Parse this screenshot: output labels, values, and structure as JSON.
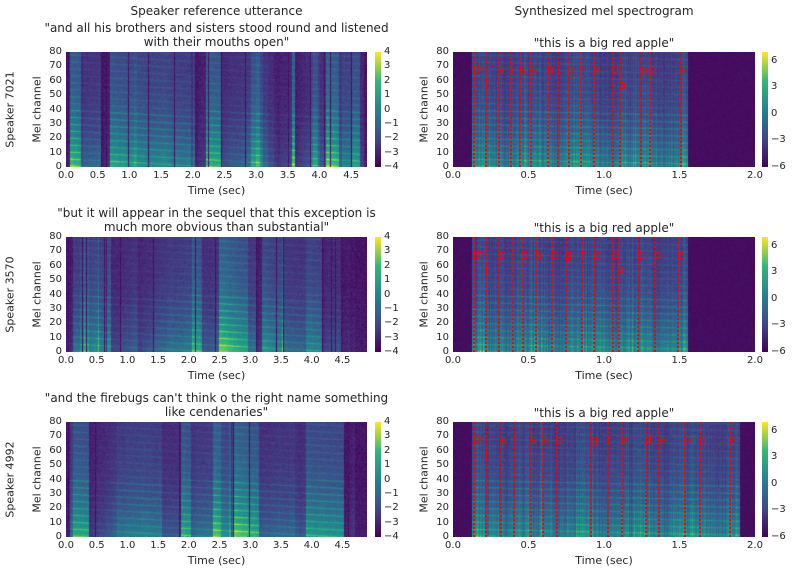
{
  "headers": {
    "left": "Speaker reference utterance",
    "right": "Synthesized mel spectrogram"
  },
  "chart_data": [
    {
      "type": "heatmap",
      "row": 0,
      "column": "left",
      "ylabel_outer": "Speaker 7021",
      "title": "\"and all his brothers and sisters stood round and listened\nwith their mouths open\"",
      "xlabel": "Time (sec)",
      "ylabel": "Mel channel",
      "xlim": [
        0,
        4.75
      ],
      "ylim": [
        0,
        80
      ],
      "xticks": [
        "0.0",
        "0.5",
        "1.0",
        "1.5",
        "2.0",
        "2.5",
        "3.0",
        "3.5",
        "4.0",
        "4.5"
      ],
      "yticks": [
        "0",
        "10",
        "20",
        "30",
        "40",
        "50",
        "60",
        "70",
        "80"
      ],
      "colorbar": {
        "range": [
          -4,
          4
        ],
        "ticks": [
          "4",
          "3",
          "2",
          "1",
          "0",
          "−1",
          "−2",
          "−3",
          "−4"
        ],
        "colormap": "viridis"
      }
    },
    {
      "type": "heatmap",
      "row": 0,
      "column": "right",
      "title": "\"this is a big red apple\"",
      "xlabel": "Time (sec)",
      "ylabel": "Mel channel",
      "xlim": [
        0,
        2.0
      ],
      "ylim": [
        0,
        80
      ],
      "xticks": [
        "0.0",
        "0.5",
        "1.0",
        "1.5",
        "2.0"
      ],
      "yticks": [
        "0",
        "10",
        "20",
        "30",
        "40",
        "50",
        "60",
        "70",
        "80"
      ],
      "colorbar": {
        "range": [
          -6,
          7
        ],
        "ticks": [
          "6",
          "3",
          "0",
          "−3",
          "−6"
        ],
        "colormap": "viridis"
      },
      "phonemes": [
        {
          "t": 0.15,
          "p": "th"
        },
        {
          "t": 0.23,
          "p": "i"
        },
        {
          "t": 0.32,
          "p": "s"
        },
        {
          "t": 0.4,
          "p": "i"
        },
        {
          "t": 0.46,
          "p": "s"
        },
        {
          "t": 0.53,
          "p": "a"
        },
        {
          "t": 0.64,
          "p": "b"
        },
        {
          "t": 0.71,
          "p": "i"
        },
        {
          "t": 0.78,
          "p": "g"
        },
        {
          "t": 0.86,
          "p": "r"
        },
        {
          "t": 0.95,
          "p": "e"
        },
        {
          "t": 1.07,
          "p": "d"
        },
        {
          "t": 1.12,
          "p": "a"
        },
        {
          "t": 1.26,
          "p": "p"
        },
        {
          "t": 1.32,
          "p": "p"
        },
        {
          "t": 1.52,
          "p": "e"
        }
      ]
    },
    {
      "type": "heatmap",
      "row": 1,
      "column": "left",
      "ylabel_outer": "Speaker 3570",
      "title": "\"but it will appear in the sequel that this exception is\nmuch more obvious than substantial\"",
      "xlabel": "Time (sec)",
      "ylabel": "Mel channel",
      "xlim": [
        0,
        4.9
      ],
      "ylim": [
        0,
        80
      ],
      "xticks": [
        "0.0",
        "0.5",
        "1.0",
        "1.5",
        "2.0",
        "2.5",
        "3.0",
        "3.5",
        "4.0",
        "4.5"
      ],
      "yticks": [
        "0",
        "10",
        "20",
        "30",
        "40",
        "50",
        "60",
        "70",
        "80"
      ],
      "colorbar": {
        "range": [
          -4,
          4
        ],
        "ticks": [
          "4",
          "3",
          "2",
          "1",
          "0",
          "−1",
          "−2",
          "−3",
          "−4"
        ],
        "colormap": "viridis"
      }
    },
    {
      "type": "heatmap",
      "row": 1,
      "column": "right",
      "title": "\"this is a big red apple\"",
      "xlabel": "Time (sec)",
      "ylabel": "Mel channel",
      "xlim": [
        0,
        2.0
      ],
      "ylim": [
        0,
        80
      ],
      "xticks": [
        "0.0",
        "0.5",
        "1.0",
        "1.5",
        "2.0"
      ],
      "yticks": [
        "0",
        "10",
        "20",
        "30",
        "40",
        "50",
        "60",
        "70",
        "80"
      ],
      "colorbar": {
        "range": [
          -6,
          7
        ],
        "ticks": [
          "6",
          "3",
          "0",
          "−3",
          "−6"
        ],
        "colormap": "viridis"
      },
      "phonemes": [
        {
          "t": 0.15,
          "p": "th"
        },
        {
          "t": 0.23,
          "p": "i"
        },
        {
          "t": 0.32,
          "p": "s"
        },
        {
          "t": 0.41,
          "p": "i"
        },
        {
          "t": 0.48,
          "p": "s"
        },
        {
          "t": 0.56,
          "p": "a"
        },
        {
          "t": 0.67,
          "p": "b"
        },
        {
          "t": 0.76,
          "p": "g"
        },
        {
          "t": 0.87,
          "p": "r"
        },
        {
          "t": 0.95,
          "p": "e"
        },
        {
          "t": 1.07,
          "p": "d"
        },
        {
          "t": 1.11,
          "p": "a"
        },
        {
          "t": 1.24,
          "p": "p"
        },
        {
          "t": 1.35,
          "p": "p"
        },
        {
          "t": 1.5,
          "p": "e"
        }
      ]
    },
    {
      "type": "heatmap",
      "row": 2,
      "column": "left",
      "ylabel_outer": "Speaker 4992",
      "title": "\"and the firebugs can't think o the right name something\nlike cendenaries\"",
      "xlabel": "Time (sec)",
      "ylabel": "Mel channel",
      "xlim": [
        0,
        4.9
      ],
      "ylim": [
        0,
        80
      ],
      "xticks": [
        "0.0",
        "0.5",
        "1.0",
        "1.5",
        "2.0",
        "2.5",
        "3.0",
        "3.5",
        "4.0",
        "4.5"
      ],
      "yticks": [
        "0",
        "10",
        "20",
        "30",
        "40",
        "50",
        "60",
        "70",
        "80"
      ],
      "colorbar": {
        "range": [
          -4,
          4
        ],
        "ticks": [
          "4",
          "3",
          "2",
          "1",
          "0",
          "−1",
          "−2",
          "−3",
          "−4"
        ],
        "colormap": "viridis"
      }
    },
    {
      "type": "heatmap",
      "row": 2,
      "column": "right",
      "title": "\"this is a big red apple\"",
      "xlabel": "Time (sec)",
      "ylabel": "Mel channel",
      "xlim": [
        0,
        2.0
      ],
      "ylim": [
        0,
        80
      ],
      "xticks": [
        "0.0",
        "0.5",
        "1.0",
        "1.5",
        "2.0"
      ],
      "yticks": [
        "0",
        "10",
        "20",
        "30",
        "40",
        "50",
        "60",
        "70",
        "80"
      ],
      "colorbar": {
        "range": [
          -6,
          7
        ],
        "ticks": [
          "6",
          "3",
          "0",
          "−3",
          "−6"
        ],
        "colormap": "viridis"
      },
      "phonemes": [
        {
          "t": 0.15,
          "p": "th"
        },
        {
          "t": 0.23,
          "p": "i"
        },
        {
          "t": 0.33,
          "p": "s"
        },
        {
          "t": 0.42,
          "p": "i"
        },
        {
          "t": 0.53,
          "p": "s"
        },
        {
          "t": 0.61,
          "p": "a"
        },
        {
          "t": 0.7,
          "p": "b"
        },
        {
          "t": 0.93,
          "p": "g"
        },
        {
          "t": 1.04,
          "p": "r"
        },
        {
          "t": 1.13,
          "p": "e"
        },
        {
          "t": 1.29,
          "p": "d"
        },
        {
          "t": 1.38,
          "p": "a"
        },
        {
          "t": 1.55,
          "p": "p"
        },
        {
          "t": 1.65,
          "p": "p"
        },
        {
          "t": 1.85,
          "p": "e"
        }
      ]
    }
  ]
}
